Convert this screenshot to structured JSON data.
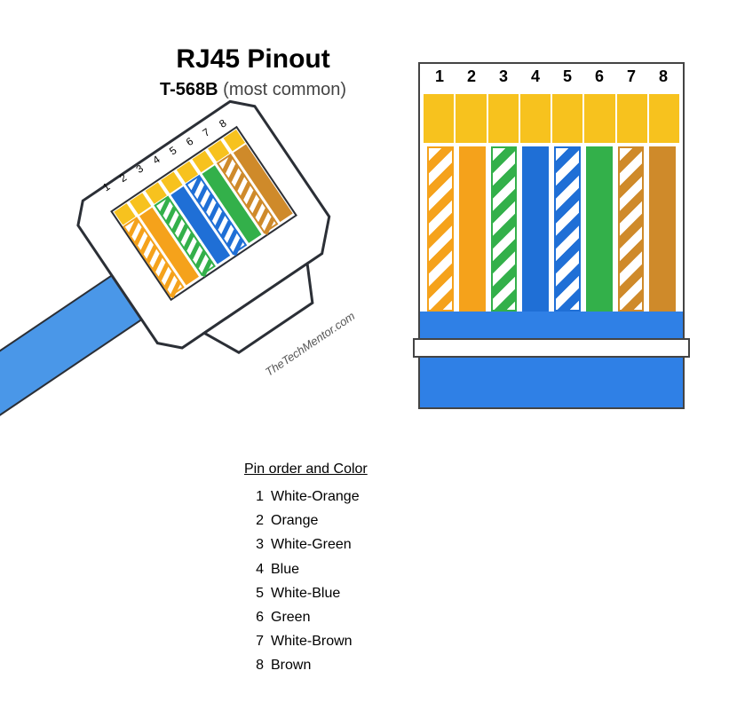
{
  "title": {
    "main": "RJ45  Pinout",
    "sub_bold": "T-568B",
    "sub_note": "(most common)",
    "main_fontsize": 30,
    "sub_fontsize": 20
  },
  "colors": {
    "orange": "#f5a21b",
    "green": "#33b04a",
    "blue": "#1f6fd6",
    "brown": "#cf8a2a",
    "gold": "#f7c21e",
    "cable": "#4a97e8",
    "cable_dark": "#2f80e6",
    "outline": "#2b2f36",
    "text": "#000000"
  },
  "pins": [
    {
      "n": 1,
      "label": "White-Orange",
      "type": "striped",
      "color_key": "orange"
    },
    {
      "n": 2,
      "label": "Orange",
      "type": "solid",
      "color_key": "orange"
    },
    {
      "n": 3,
      "label": "White-Green",
      "type": "striped",
      "color_key": "green"
    },
    {
      "n": 4,
      "label": "Blue",
      "type": "solid",
      "color_key": "blue"
    },
    {
      "n": 5,
      "label": "White-Blue",
      "type": "striped",
      "color_key": "blue"
    },
    {
      "n": 6,
      "label": "Green",
      "type": "solid",
      "color_key": "green"
    },
    {
      "n": 7,
      "label": "White-Brown",
      "type": "striped",
      "color_key": "brown"
    },
    {
      "n": 8,
      "label": "Brown",
      "type": "solid",
      "color_key": "brown"
    }
  ],
  "table": {
    "heading": "Pin order and Color"
  },
  "flat_view": {
    "pin_number_fontsize": 18
  },
  "iso_view": {
    "pin_number_fontsize": 12,
    "rotation_deg": -34,
    "skewY_deg": 18
  },
  "credit": "TheTechMentor.com"
}
